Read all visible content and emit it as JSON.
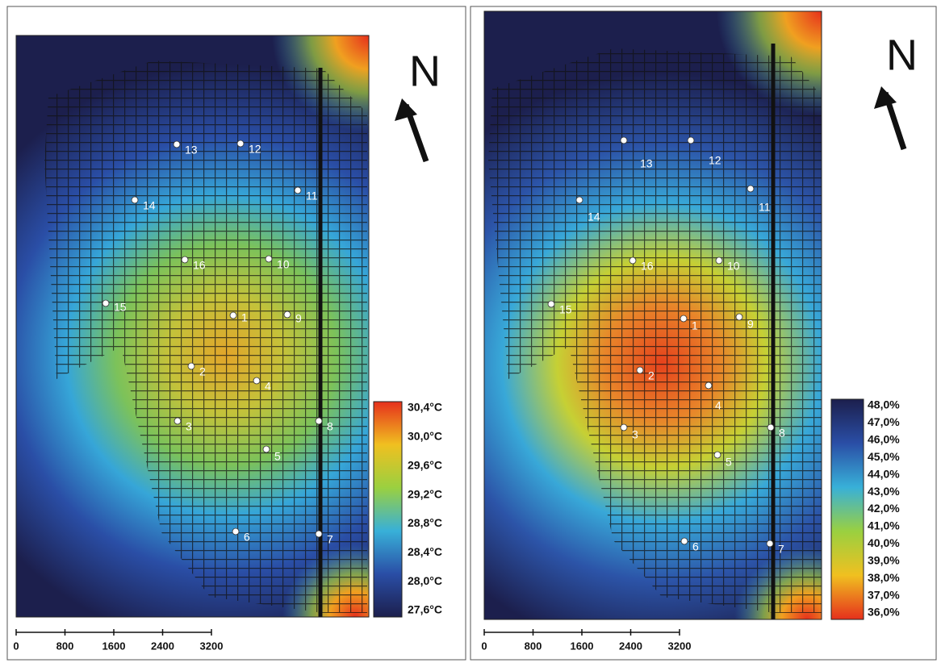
{
  "panels": [
    {
      "north": "N",
      "points": [
        "1",
        "2",
        "3",
        "4",
        "5",
        "6",
        "7",
        "8",
        "9",
        "10",
        "11",
        "12",
        "13",
        "14",
        "15",
        "16"
      ],
      "legend": [
        "30,4°C",
        "30,0°C",
        "29,6°C",
        "29,2°C",
        "28,8°C",
        "28,4°C",
        "28,0°C",
        "27,6°C"
      ],
      "scale": [
        "0",
        "800",
        "1600",
        "2400",
        "3200"
      ]
    },
    {
      "north": "N",
      "points": [
        "1",
        "2",
        "3",
        "4",
        "5",
        "6",
        "7",
        "8",
        "9",
        "10",
        "11",
        "12",
        "13",
        "14",
        "15",
        "16"
      ],
      "legend": [
        "48,0%",
        "47,0%",
        "46,0%",
        "45,0%",
        "44,0%",
        "43,0%",
        "42,0%",
        "41,0%",
        "40,0%",
        "39,0%",
        "38,0%",
        "37,0%",
        "36,0%"
      ],
      "scale": [
        "0",
        "800",
        "1600",
        "2400",
        "3200"
      ]
    }
  ]
}
